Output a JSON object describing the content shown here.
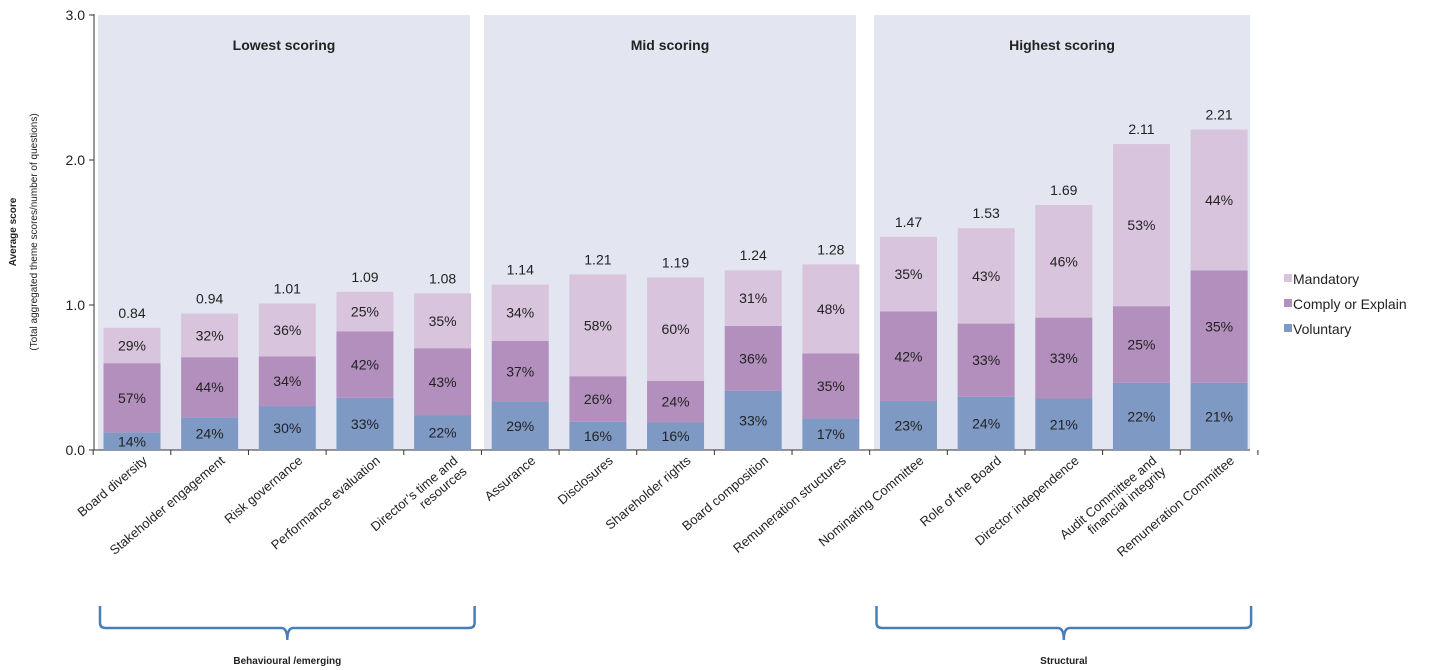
{
  "chart_data": {
    "type": "bar",
    "stacked": true,
    "ylabel": "Average score",
    "ylabel_sub": "(Total aggregated theme scores/number of questions)",
    "ylim": [
      0,
      3.0
    ],
    "yticks": [
      "0.0",
      "1.0",
      "2.0",
      "3.0"
    ],
    "categories": [
      "Board diversity",
      "Stakeholder engagement",
      "Risk governance",
      "Performance evaluation",
      "Director’s time and resources",
      "Assurance",
      "Disclosures",
      "Shareholder rights",
      "Board composition",
      "Remuneration structures",
      "Nominating Committee",
      "Role of the Board",
      "Director independence",
      "Audit Committee and financial integrity",
      "Remuneration Committee"
    ],
    "category_lines": [
      [
        "Board diversity"
      ],
      [
        "Stakeholder engagement"
      ],
      [
        "Risk governance"
      ],
      [
        "Performance evaluation"
      ],
      [
        "Director’s time and",
        "resources"
      ],
      [
        "Assurance"
      ],
      [
        "Disclosures"
      ],
      [
        "Shareholder rights"
      ],
      [
        "Board composition"
      ],
      [
        "Remuneration structures"
      ],
      [
        "Nominating Committee"
      ],
      [
        "Role of the Board"
      ],
      [
        "Director independence"
      ],
      [
        "Audit Committee and",
        "financial integrity"
      ],
      [
        "Remuneration Committee"
      ]
    ],
    "totals": [
      0.84,
      0.94,
      1.01,
      1.09,
      1.08,
      1.14,
      1.21,
      1.19,
      1.24,
      1.28,
      1.47,
      1.53,
      1.69,
      2.11,
      2.21
    ],
    "total_labels": [
      "0.84",
      "0.94",
      "1.01",
      "1.09",
      "1.08",
      "1.14",
      "1.21",
      "1.19",
      "1.24",
      "1.28",
      "1.47",
      "1.53",
      "1.69",
      "2.11",
      "2.21"
    ],
    "series": [
      {
        "name": "Voluntary",
        "color": "#7d99c4",
        "values": [
          0.12,
          0.226,
          0.303,
          0.36,
          0.238,
          0.331,
          0.194,
          0.19,
          0.409,
          0.218,
          0.338,
          0.367,
          0.355,
          0.464,
          0.464
        ],
        "labels": [
          "14%",
          "24%",
          "30%",
          "33%",
          "22%",
          "29%",
          "16%",
          "16%",
          "33%",
          "17%",
          "23%",
          "24%",
          "21%",
          "22%",
          "21%"
        ]
      },
      {
        "name": "Comply or Explain",
        "color": "#b38fbd",
        "values": [
          0.479,
          0.414,
          0.343,
          0.458,
          0.464,
          0.422,
          0.315,
          0.286,
          0.446,
          0.448,
          0.617,
          0.505,
          0.558,
          0.528,
          0.774
        ],
        "labels": [
          "57%",
          "44%",
          "34%",
          "42%",
          "43%",
          "37%",
          "26%",
          "24%",
          "36%",
          "35%",
          "42%",
          "33%",
          "33%",
          "25%",
          "35%"
        ]
      },
      {
        "name": "Mandatory",
        "color": "#d9c4dd",
        "values": [
          0.244,
          0.301,
          0.364,
          0.273,
          0.378,
          0.388,
          0.702,
          0.714,
          0.384,
          0.614,
          0.515,
          0.658,
          0.777,
          1.118,
          0.972
        ],
        "labels": [
          "29%",
          "32%",
          "36%",
          "25%",
          "35%",
          "34%",
          "58%",
          "60%",
          "31%",
          "48%",
          "35%",
          "43%",
          "46%",
          "53%",
          "44%"
        ]
      }
    ],
    "groups": [
      {
        "label": "Lowest scoring",
        "count": 5
      },
      {
        "label": "Mid scoring",
        "count": 5
      },
      {
        "label": "Highest scoring",
        "count": 5
      }
    ],
    "brackets": [
      {
        "label": "Behavioural /emerging",
        "start": 0,
        "end": 4
      },
      {
        "label": "Structural",
        "start": 10,
        "end": 14
      }
    ],
    "legend": [
      "Mandatory",
      "Comply or Explain",
      "Voluntary"
    ],
    "legend_position": "right",
    "colors": {
      "panel": "#e3e6f0",
      "bracket": "#4a7ebb",
      "axis": "#333333"
    }
  }
}
